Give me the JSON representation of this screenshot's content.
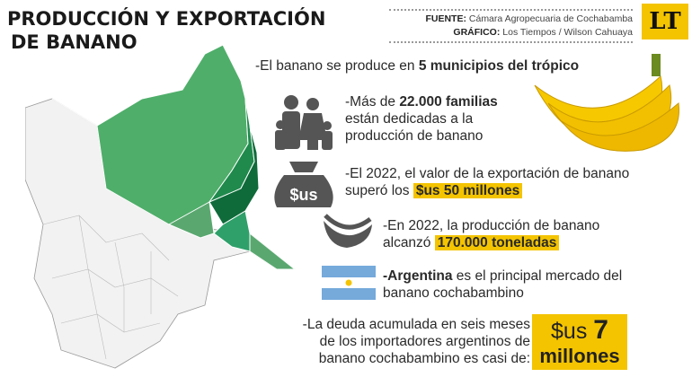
{
  "header": {
    "title_line1": "PRODUCCIÓN Y EXPORTACIÓN",
    "title_line2": "DE BANANO",
    "source_label": "FUENTE:",
    "source": "Cámara Agropecuaria de Cochabamba",
    "graphic_label": "GRÁFICO:",
    "graphic": "Los Tiempos / Wilson Cahuaya",
    "logo": "LT"
  },
  "colors": {
    "accent": "#f4c400",
    "map_green_1": "#4fae6a",
    "map_green_2": "#1f8a4c",
    "map_green_3": "#0f6b3a",
    "map_green_4": "#2f9e6a",
    "map_green_5": "#5aa870",
    "map_base": "#f2f2f2"
  },
  "facts": [
    {
      "pre": "-El banano se produce en ",
      "bold": "5 municipios del trópico",
      "icon": "banana-bunch"
    },
    {
      "pre": "-Más de ",
      "bold": "22.000 familias",
      "post": " están dedicadas a la producción de banano",
      "icon": "family-icon"
    },
    {
      "pre": "-El 2022, el valor de la exportación de banano superó los ",
      "hl": "$us 50 millones",
      "icon": "money-bag-icon",
      "icon_text": "$us"
    },
    {
      "pre": "-En 2022, la producción de banano alcanzó ",
      "hl": "170.000 toneladas",
      "icon": "banana-icon"
    },
    {
      "bold": "-Argentina",
      "post": " es el principal mercado del banano cochabambino",
      "icon": "argentina-flag"
    },
    {
      "pre": "-La deuda acumulada en seis meses de los importadores argentinos de banano cochabambino es casi de:",
      "big_a": "$us ",
      "big_b": "7",
      "big_c": "millones"
    }
  ]
}
